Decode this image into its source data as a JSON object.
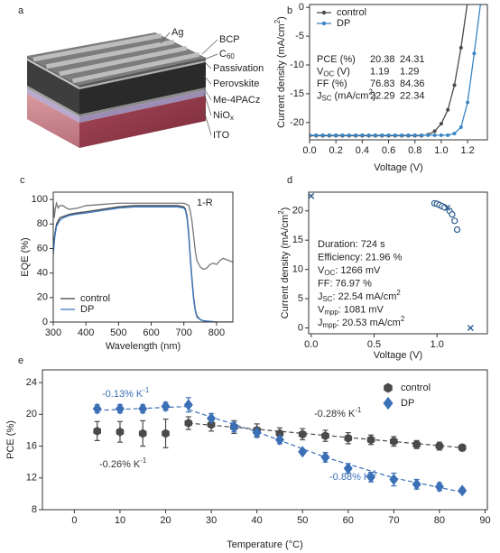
{
  "device": {
    "panel": "a",
    "labels": [
      [
        [
          "Ag"
        ]
      ],
      [
        [
          "BCP"
        ]
      ],
      [
        [
          "C"
        ],
        [
          "60",
          "sub"
        ]
      ],
      [
        [
          "Passivation"
        ]
      ],
      [
        [
          "Perovskite"
        ]
      ],
      [
        [
          "Me-4PACz"
        ]
      ],
      [
        [
          "NiO"
        ],
        [
          "x",
          "sub"
        ]
      ],
      [
        [
          "ITO"
        ]
      ]
    ]
  },
  "chart_data": [
    {
      "panel": "b",
      "type": "line",
      "xlabel": [
        [
          "Voltage (V)"
        ]
      ],
      "ylabel": [
        [
          "Current density (mA/cm"
        ],
        [
          "2",
          "sup"
        ],
        [
          ")"
        ]
      ],
      "xlim": [
        0,
        1.35
      ],
      "ylim": [
        -23,
        0.5
      ],
      "xticks": [
        {
          "value": 0,
          "label": "0.0"
        },
        0.2,
        0.4,
        0.6,
        0.8,
        {
          "value": 1,
          "label": "1.0"
        },
        1.2
      ],
      "yticks": [
        -20,
        -15,
        -10,
        -5,
        0
      ],
      "legend": "upper left",
      "x": [
        0,
        0.05,
        0.1,
        0.15,
        0.2,
        0.25,
        0.3,
        0.35,
        0.4,
        0.45,
        0.5,
        0.55,
        0.6,
        0.65,
        0.7,
        0.75,
        0.8,
        0.85,
        0.9,
        0.95,
        1.0,
        1.05,
        1.1,
        1.15,
        1.2,
        1.25,
        1.3
      ],
      "series": [
        {
          "name": "control",
          "color": "#4a4a4a",
          "marker": "circle",
          "values": [
            -22.3,
            -22.3,
            -22.3,
            -22.3,
            -22.3,
            -22.3,
            -22.3,
            -22.3,
            -22.3,
            -22.3,
            -22.3,
            -22.3,
            -22.3,
            -22.3,
            -22.3,
            -22.3,
            -22.3,
            -22.3,
            -22.1,
            -21.5,
            -20.2,
            -17.8,
            -13.5,
            -7.0,
            1.0,
            null,
            null
          ]
        },
        {
          "name": "DP",
          "color": "#3b86c4",
          "marker": "circle",
          "values": [
            -22.2,
            -22.2,
            -22.2,
            -22.2,
            -22.2,
            -22.2,
            -22.2,
            -22.2,
            -22.2,
            -22.2,
            -22.2,
            -22.2,
            -22.2,
            -22.2,
            -22.2,
            -22.2,
            -22.2,
            -22.2,
            -22.2,
            -22.2,
            -22.2,
            -22.2,
            -21.9,
            -20.8,
            -16.5,
            -8.0,
            1.0
          ]
        }
      ],
      "table": [
        {
          "label": [
            [
              "PCE (%)"
            ]
          ],
          "values": [
            "20.38",
            "24.31"
          ]
        },
        {
          "label": [
            [
              "V"
            ],
            [
              "OC",
              "sub"
            ],
            [
              " (V)"
            ]
          ],
          "values": [
            "1.19",
            "1.29"
          ]
        },
        {
          "label": [
            [
              "FF (%)"
            ]
          ],
          "values": [
            "76.83",
            "84.36"
          ]
        },
        {
          "label": [
            [
              "J"
            ],
            [
              "SC",
              "sub"
            ],
            [
              " (mA/cm"
            ],
            [
              "2",
              "sup"
            ],
            [
              ")"
            ]
          ],
          "values": [
            "22.29",
            "22.34"
          ]
        }
      ]
    },
    {
      "panel": "c",
      "type": "line",
      "xlabel": [
        [
          "Wavelength (nm)"
        ]
      ],
      "ylabel": [
        [
          "EQE (%)"
        ]
      ],
      "xlim": [
        300,
        850
      ],
      "ylim": [
        0,
        106
      ],
      "xticks": [
        300,
        400,
        500,
        600,
        700,
        800
      ],
      "yticks": [
        0,
        20,
        40,
        60,
        80,
        100
      ],
      "legend": "lower left",
      "series": [
        {
          "name": "control",
          "color": "#444444",
          "x": [
            300,
            305,
            310,
            320,
            330,
            340,
            350,
            370,
            400,
            450,
            500,
            550,
            600,
            650,
            680,
            700,
            705,
            710,
            715,
            720,
            725,
            730,
            735,
            740,
            750,
            760,
            780,
            800,
            850
          ],
          "values": [
            62,
            72,
            80,
            85,
            86,
            87,
            88,
            89,
            90,
            92,
            94,
            95,
            95,
            95,
            95,
            94,
            92,
            86,
            72,
            52,
            35,
            20,
            10,
            5,
            2,
            1,
            0.5,
            0,
            0
          ]
        },
        {
          "name": "DP",
          "color": "#3b78c0",
          "x": [
            300,
            305,
            310,
            320,
            330,
            340,
            350,
            370,
            400,
            450,
            500,
            550,
            600,
            650,
            680,
            700,
            705,
            710,
            715,
            720,
            725,
            730,
            735,
            740,
            750,
            760,
            780,
            800,
            850
          ],
          "values": [
            55,
            70,
            78,
            83,
            85,
            86,
            87,
            88,
            89,
            91,
            93,
            94,
            94,
            94,
            94,
            93,
            91,
            84,
            70,
            50,
            33,
            18,
            9,
            4,
            2,
            1,
            0.5,
            0,
            0
          ]
        },
        {
          "name": "1-R",
          "color": "#777777",
          "inline_label": true,
          "x": [
            300,
            303,
            306,
            310,
            315,
            320,
            330,
            340,
            350,
            375,
            400,
            450,
            500,
            550,
            600,
            650,
            700,
            710,
            715,
            720,
            725,
            730,
            735,
            740,
            750,
            760,
            770,
            780,
            790,
            800,
            810,
            820,
            830,
            840,
            850
          ],
          "values": [
            98,
            85,
            92,
            97,
            93,
            95,
            95,
            93,
            92,
            93,
            95,
            96,
            97,
            97,
            97,
            97,
            97,
            96,
            95,
            90,
            82,
            70,
            58,
            50,
            45,
            43,
            44,
            47,
            48,
            47,
            50,
            52,
            51,
            50,
            49
          ]
        }
      ]
    },
    {
      "panel": "d",
      "type": "scatter",
      "xlabel": [
        [
          "Voltage (V)"
        ]
      ],
      "ylabel": [
        [
          "Current density (mA/cm"
        ],
        [
          "2",
          "sup"
        ],
        [
          ")"
        ]
      ],
      "xlim": [
        -0.02,
        1.4
      ],
      "ylim": [
        -1,
        23.2
      ],
      "xticks": [
        {
          "value": 0,
          "label": "0.0"
        },
        0.5,
        {
          "value": 1,
          "label": "1.0"
        }
      ],
      "yticks": [
        0,
        5,
        10,
        15,
        20
      ],
      "series": [
        {
          "color": "#2d5b8f",
          "marker": "circle-open",
          "x": [
            0.98,
            1.0,
            1.02,
            1.04,
            1.06,
            1.1,
            1.12,
            1.14,
            1.16
          ],
          "values": [
            21.3,
            21.2,
            21.0,
            20.8,
            20.6,
            20.0,
            19.4,
            18.3,
            16.8
          ]
        },
        {
          "color": "#2d5b8f",
          "marker": "x",
          "x": [
            0,
            1.081,
            1.266
          ],
          "values": [
            22.54,
            20.53,
            0
          ]
        }
      ],
      "info": [
        [
          [
            "Duration: 724 s"
          ]
        ],
        [
          [
            "Efficiency:        21.96 %"
          ]
        ],
        [
          [
            "V"
          ],
          [
            "OC",
            "sub"
          ],
          [
            ": 1266 mV"
          ]
        ],
        [
          [
            "FF: 76.97 %"
          ]
        ],
        [
          [
            "J"
          ],
          [
            "SC",
            "sub"
          ],
          [
            ":    22.54  mA/cm"
          ],
          [
            "2",
            "sup"
          ]
        ],
        [
          [
            "V"
          ],
          [
            "mpp",
            "sub"
          ],
          [
            ":  1081   mV"
          ]
        ],
        [
          [
            "J"
          ],
          [
            "mpp",
            "sub"
          ],
          [
            ":  20.53  mA/cm"
          ],
          [
            "2",
            "sup"
          ]
        ]
      ]
    },
    {
      "panel": "e",
      "type": "scatter",
      "xlabel": [
        [
          "Temperature (°C)"
        ]
      ],
      "ylabel": [
        [
          "PCE (%)"
        ]
      ],
      "xlim": [
        -7,
        90.5
      ],
      "ylim": [
        8,
        25.6
      ],
      "xticks": [
        0,
        10,
        20,
        30,
        40,
        50,
        60,
        70,
        80,
        90
      ],
      "yticks": [
        8,
        12,
        16,
        20,
        24
      ],
      "legend": "upper right",
      "x": [
        5,
        10,
        15,
        20,
        25,
        30,
        35,
        40,
        45,
        50,
        55,
        60,
        65,
        70,
        75,
        80,
        85
      ],
      "series": [
        {
          "name": "control",
          "color": "#4a4a4a",
          "marker": "hexagon",
          "values": [
            17.9,
            17.8,
            17.6,
            17.6,
            18.9,
            18.7,
            18.4,
            18.0,
            17.6,
            17.5,
            17.3,
            17.0,
            16.8,
            16.6,
            16.2,
            16.0,
            15.8
          ],
          "errors": [
            1.2,
            1.3,
            1.6,
            1.8,
            0.8,
            0.8,
            0.8,
            0.8,
            0.7,
            0.7,
            0.7,
            0.7,
            0.6,
            0.6,
            0.5,
            0.5,
            0.4
          ]
        },
        {
          "name": "DP",
          "color": "#3b6fb6",
          "marker": "diamond",
          "values": [
            20.7,
            20.7,
            20.7,
            21.0,
            21.2,
            19.5,
            18.4,
            17.7,
            16.8,
            15.3,
            14.6,
            13.2,
            12.1,
            11.8,
            11.2,
            10.9,
            10.4
          ],
          "errors": [
            0.5,
            0.5,
            0.5,
            0.5,
            0.9,
            0.6,
            0.6,
            0.6,
            0.5,
            0.3,
            0.6,
            0.6,
            0.6,
            0.8,
            0.6,
            0.5,
            0.3
          ]
        }
      ],
      "fits": [
        {
          "color": "#3b6fb6",
          "x": [
            5,
            25
          ],
          "values": [
            20.5,
            21.0
          ]
        },
        {
          "color": "#3b6fb6",
          "x": [
            25,
            40,
            55,
            70,
            85
          ],
          "values": [
            20.6,
            17.8,
            14.6,
            12.0,
            10.2
          ]
        },
        {
          "color": "#4a4a4a",
          "x": [
            25,
            85
          ],
          "values": [
            18.9,
            15.8
          ]
        }
      ],
      "annotations": [
        {
          "text": [
            [
              "-0.13% K"
            ],
            [
              "-1",
              "sup"
            ]
          ],
          "color": "#3b6fb6"
        },
        {
          "text": [
            [
              "-0.28% K"
            ],
            [
              "-1",
              "sup"
            ]
          ],
          "color": "#333333"
        },
        {
          "text": [
            [
              "-0.26% K"
            ],
            [
              "-1",
              "sup"
            ]
          ],
          "color": "#333333"
        },
        {
          "text": [
            [
              "-0.88% K"
            ],
            [
              "-1",
              "sup"
            ]
          ],
          "color": "#3b6fb6"
        }
      ]
    }
  ]
}
